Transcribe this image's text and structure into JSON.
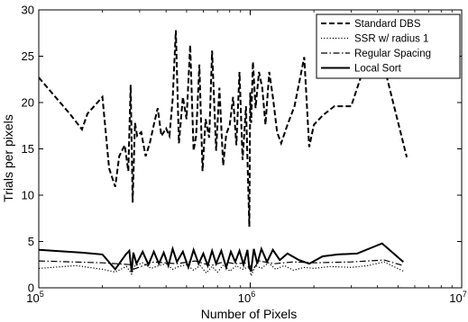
{
  "chart_data": {
    "type": "line",
    "title": "",
    "xlabel": "Number of Pixels",
    "ylabel": "Trials per pixels",
    "xscale": "log",
    "xlim": [
      100000,
      10000000
    ],
    "ylim": [
      0,
      30
    ],
    "x_ticks": [
      {
        "value": 100000,
        "base": "10",
        "exp": "5"
      },
      {
        "value": 1000000,
        "base": "10",
        "exp": "6"
      },
      {
        "value": 10000000,
        "base": "10",
        "exp": "7"
      }
    ],
    "y_ticks": [
      0,
      5,
      10,
      15,
      20,
      25,
      30
    ],
    "grid": false,
    "legend_position": "top-right",
    "series": [
      {
        "name": "Standard DBS",
        "style": "dashed",
        "color": "#000000",
        "x": [
          100000,
          140000,
          160000,
          170000,
          200000,
          215000,
          230000,
          240000,
          255000,
          265000,
          272000,
          278000,
          285000,
          292000,
          305000,
          320000,
          335000,
          350000,
          365000,
          380000,
          400000,
          415000,
          430000,
          445000,
          460000,
          480000,
          500000,
          520000,
          540000,
          555000,
          575000,
          595000,
          615000,
          640000,
          660000,
          690000,
          715000,
          745000,
          770000,
          800000,
          830000,
          860000,
          890000,
          920000,
          955000,
          990000,
          1000000,
          1010000,
          1030000,
          1060000,
          1100000,
          1140000,
          1180000,
          1230000,
          1280000,
          1340000,
          1400000,
          1500000,
          1620000,
          1800000,
          1900000,
          2000000,
          2200000,
          2500000,
          3000000,
          3400000,
          4300000,
          5500000
        ],
        "y": [
          22.7,
          18.8,
          17.1,
          18.8,
          20.6,
          12.9,
          10.9,
          14.2,
          15.4,
          12.6,
          21.9,
          9.2,
          17.8,
          16.4,
          16.8,
          14.2,
          15.6,
          17.6,
          19.4,
          16.4,
          17.2,
          16.4,
          20.4,
          27.8,
          15.6,
          20.6,
          18.2,
          26.2,
          14.8,
          16.4,
          24.1,
          12.6,
          18.2,
          16.2,
          25.6,
          14.8,
          21.6,
          13.2,
          16.6,
          17.6,
          20.6,
          15.4,
          23.3,
          13.8,
          19.6,
          6.6,
          21.1,
          17.8,
          24.4,
          19.4,
          23.3,
          21.6,
          17.6,
          23.3,
          20.6,
          16.8,
          15.6,
          17.6,
          19.6,
          24.9,
          15.2,
          17.6,
          18.6,
          19.6,
          19.6,
          23.3,
          23.9,
          14.1
        ]
      },
      {
        "name": "SSR w/ radius 1",
        "style": "dotted",
        "color": "#000000",
        "x": [
          100000,
          150000,
          200000,
          230000,
          260000,
          275000,
          285000,
          310000,
          340000,
          370000,
          400000,
          430000,
          460000,
          500000,
          540000,
          580000,
          620000,
          660000,
          700000,
          750000,
          800000,
          860000,
          920000,
          990000,
          1010000,
          1060000,
          1130000,
          1220000,
          1320000,
          1450000,
          1600000,
          1800000,
          2000000,
          2400000,
          3000000,
          3600000,
          4300000,
          5300000
        ],
        "y": [
          2.1,
          2.4,
          2.0,
          1.7,
          2.3,
          1.5,
          2.4,
          2.7,
          2.1,
          2.4,
          2.6,
          2.0,
          2.3,
          2.5,
          1.9,
          2.4,
          1.6,
          2.3,
          1.7,
          2.5,
          1.8,
          2.4,
          2.0,
          2.3,
          1.3,
          2.4,
          2.1,
          2.7,
          2.0,
          2.4,
          1.9,
          2.2,
          2.1,
          2.3,
          2.2,
          2.4,
          2.8,
          1.8
        ]
      },
      {
        "name": "Regular Spacing",
        "style": "dashdot",
        "color": "#000000",
        "x": [
          100000,
          200000,
          275000,
          280000,
          350000,
          450000,
          550000,
          650000,
          750000,
          850000,
          990000,
          1010000,
          1100000,
          1300000,
          1600000,
          2000000,
          3000000,
          4300000,
          5300000
        ],
        "y": [
          2.9,
          2.7,
          2.5,
          2.0,
          2.8,
          2.6,
          2.9,
          2.4,
          2.8,
          2.6,
          2.7,
          1.7,
          2.9,
          2.6,
          2.8,
          2.7,
          2.8,
          3.0,
          2.4
        ]
      },
      {
        "name": "Local Sort",
        "style": "solid",
        "color": "#000000",
        "x": [
          100000,
          160000,
          200000,
          230000,
          258000,
          268000,
          275000,
          280000,
          290000,
          310000,
          330000,
          350000,
          370000,
          390000,
          410000,
          430000,
          450000,
          480000,
          510000,
          540000,
          570000,
          600000,
          630000,
          660000,
          690000,
          730000,
          770000,
          810000,
          850000,
          890000,
          930000,
          970000,
          990000,
          1010000,
          1040000,
          1080000,
          1130000,
          1200000,
          1280000,
          1380000,
          1500000,
          1700000,
          1900000,
          2200000,
          2600000,
          3200000,
          4200000,
          5300000
        ],
        "y": [
          4.1,
          3.8,
          3.6,
          2.0,
          3.6,
          4.0,
          1.7,
          3.8,
          2.6,
          3.9,
          2.5,
          3.9,
          2.6,
          3.8,
          2.4,
          4.2,
          2.8,
          3.9,
          2.2,
          4.1,
          2.6,
          3.7,
          2.4,
          4.0,
          2.6,
          4.0,
          2.2,
          3.9,
          2.8,
          4.0,
          2.5,
          4.1,
          2.1,
          1.9,
          4.2,
          2.6,
          4.2,
          2.8,
          4.1,
          3.0,
          3.7,
          3.0,
          2.6,
          3.4,
          3.6,
          3.7,
          4.8,
          2.8
        ]
      }
    ]
  }
}
